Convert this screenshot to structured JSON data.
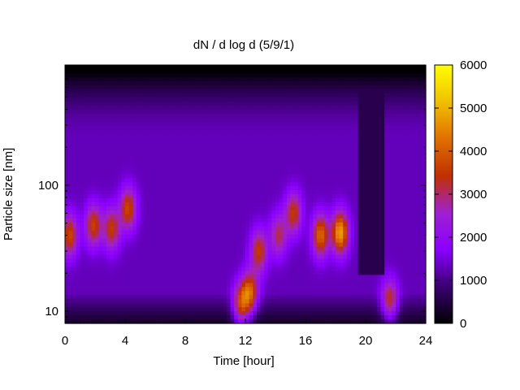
{
  "chart_data": {
    "type": "heatmap",
    "title": "dN / d log d (5/9/1)",
    "xlabel": "Time [hour]",
    "ylabel": "Particle size [nm]",
    "xlim": [
      0,
      24
    ],
    "ylim_nm": [
      8,
      900
    ],
    "y_scale": "log",
    "x_ticks": [
      0,
      4,
      8,
      12,
      16,
      20,
      24
    ],
    "x_tick_labels": [
      "0",
      "4",
      "8",
      "12",
      "16",
      "20",
      "24"
    ],
    "y_ticks": [
      10,
      100
    ],
    "y_tick_labels": [
      "10",
      "100"
    ],
    "colorbar": {
      "range": [
        0,
        6000
      ],
      "ticks": [
        0,
        1000,
        2000,
        3000,
        4000,
        5000,
        6000
      ],
      "tick_labels": [
        "0",
        "1000",
        "2000",
        "3000",
        "4000",
        "5000",
        "6000"
      ],
      "palette_stops": [
        "#000000",
        "#3a0070",
        "#8a00ff",
        "#a020d0",
        "#c03000",
        "#e07000",
        "#f0c000",
        "#ffff00"
      ]
    },
    "background_level": 1300,
    "hot_spots": [
      {
        "t": 0.3,
        "d_nm": 40,
        "value": 3200
      },
      {
        "t": 1.9,
        "d_nm": 48,
        "value": 3100
      },
      {
        "t": 3.1,
        "d_nm": 45,
        "value": 3000
      },
      {
        "t": 4.2,
        "d_nm": 65,
        "value": 3200
      },
      {
        "t": 11.7,
        "d_nm": 11,
        "value": 3300
      },
      {
        "t": 12.3,
        "d_nm": 14,
        "value": 3400
      },
      {
        "t": 12.9,
        "d_nm": 30,
        "value": 3000
      },
      {
        "t": 14.2,
        "d_nm": 40,
        "value": 2600
      },
      {
        "t": 15.2,
        "d_nm": 60,
        "value": 3000
      },
      {
        "t": 17.0,
        "d_nm": 40,
        "value": 3600
      },
      {
        "t": 18.3,
        "d_nm": 42,
        "value": 4300
      },
      {
        "t": 21.6,
        "d_nm": 12,
        "value": 3000
      }
    ],
    "low_zones": [
      {
        "t_from": 19.6,
        "t_to": 21.2,
        "d_from_nm": 20,
        "d_to_nm": 900,
        "value": 600
      }
    ]
  }
}
